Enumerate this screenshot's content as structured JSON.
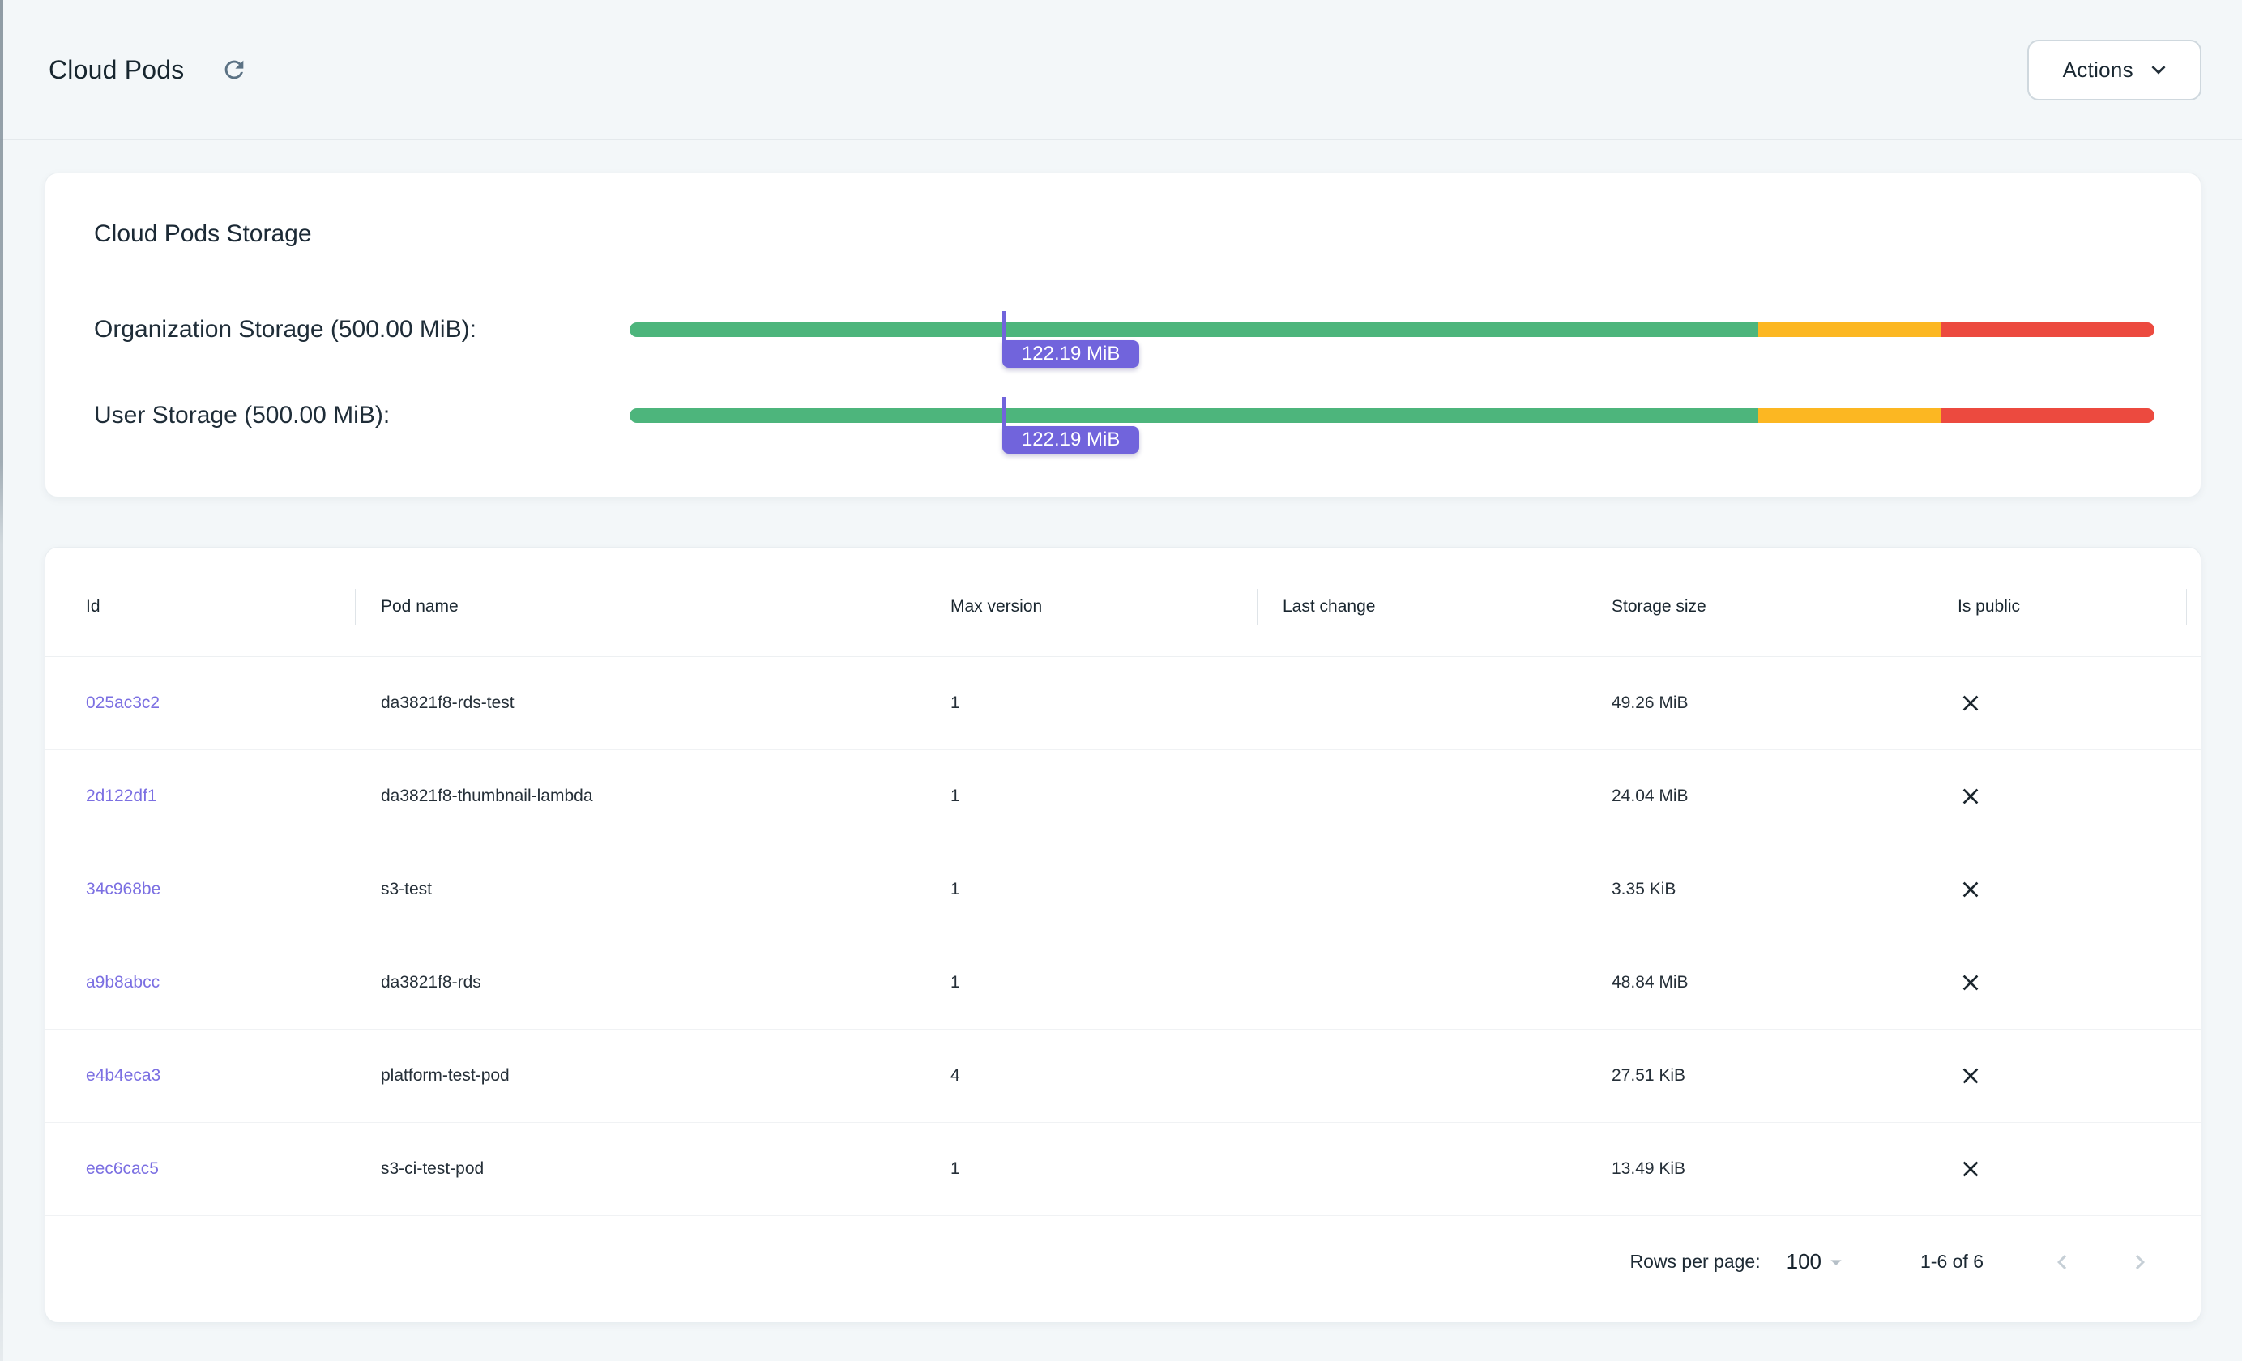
{
  "header": {
    "title": "Cloud Pods",
    "actions_button": {
      "label": "Actions"
    }
  },
  "storage_card": {
    "title": "Cloud Pods Storage",
    "meters": [
      {
        "label": "Organization Storage (500.00 MiB):",
        "value_label": "122.19 MiB",
        "percent": 24.44
      },
      {
        "label": "User Storage (500.00 MiB):",
        "value_label": "122.19 MiB",
        "percent": 24.44
      }
    ],
    "segments": [
      {
        "name": "ok",
        "color": "#4db57c",
        "percent": 74
      },
      {
        "name": "warning",
        "color": "#fcb722",
        "percent": 12
      },
      {
        "name": "critical",
        "color": "#ec4a3f",
        "percent": 14
      }
    ],
    "marker_color": "#7164dc"
  },
  "table": {
    "columns": [
      "Id",
      "Pod name",
      "Max version",
      "Last change",
      "Storage size",
      "Is public"
    ],
    "rows": [
      {
        "id": "025ac3c2",
        "pod_name": "da3821f8-rds-test",
        "max_version": "1",
        "last_change": "",
        "storage_size": "49.26 MiB",
        "is_public": "no"
      },
      {
        "id": "2d122df1",
        "pod_name": "da3821f8-thumbnail-lambda",
        "max_version": "1",
        "last_change": "",
        "storage_size": "24.04 MiB",
        "is_public": "no"
      },
      {
        "id": "34c968be",
        "pod_name": "s3-test",
        "max_version": "1",
        "last_change": "",
        "storage_size": "3.35 KiB",
        "is_public": "no"
      },
      {
        "id": "a9b8abcc",
        "pod_name": "da3821f8-rds",
        "max_version": "1",
        "last_change": "",
        "storage_size": "48.84 MiB",
        "is_public": "no"
      },
      {
        "id": "e4b4eca3",
        "pod_name": "platform-test-pod",
        "max_version": "4",
        "last_change": "",
        "storage_size": "27.51 KiB",
        "is_public": "no"
      },
      {
        "id": "eec6cac5",
        "pod_name": "s3-ci-test-pod",
        "max_version": "1",
        "last_change": "",
        "storage_size": "13.49 KiB",
        "is_public": "no"
      }
    ],
    "pagination": {
      "rows_per_page_label": "Rows per page:",
      "rows_per_page_value": "100",
      "range_label": "1-6 of 6"
    }
  },
  "colors": {
    "page_background": "#f3f7f9",
    "card_background": "#ffffff",
    "link_purple": "#7b6fe2",
    "badge_purple": "#7164dc",
    "bar_green": "#4db57c",
    "bar_amber": "#fcb722",
    "bar_red": "#ec4a3f"
  }
}
